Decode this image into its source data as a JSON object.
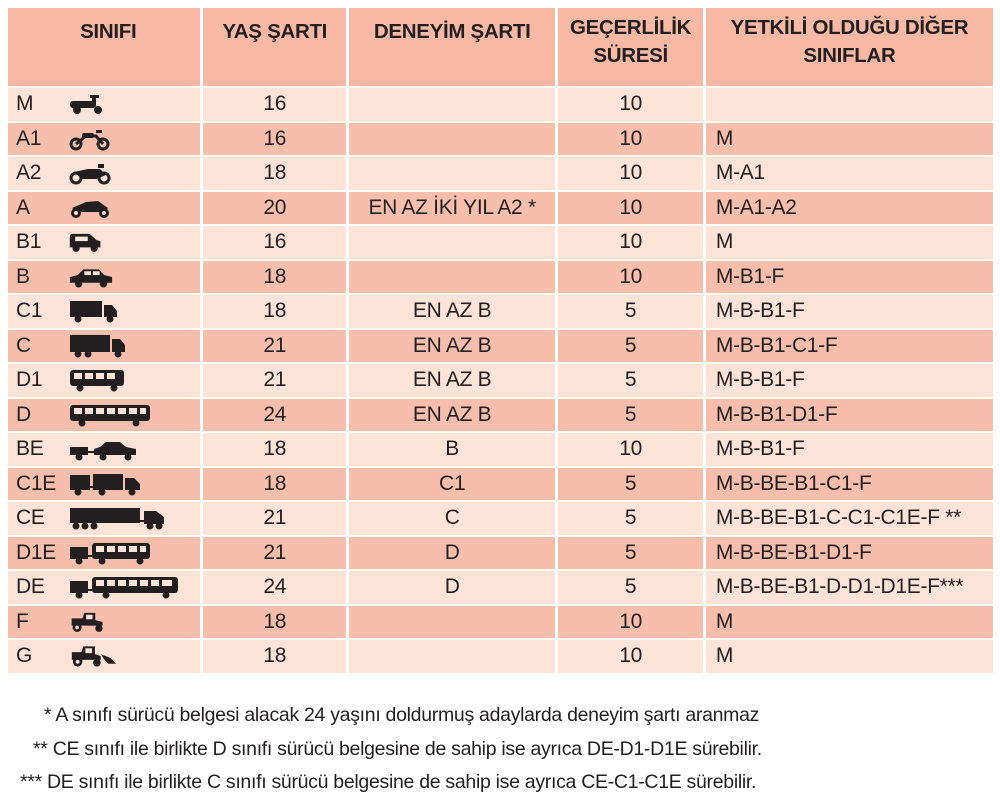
{
  "header": {
    "sinifi": "SINIFI",
    "yas": "YAŞ ŞARTI",
    "deneyim": "DENEYİM ŞARTI",
    "gecerlilik_1": "GEÇERLİLİK",
    "gecerlilik_2": "SÜRESİ",
    "yetkili_1": "YETKİLİ OLDUĞU DİĞER",
    "yetkili_2": "SINIFLAR"
  },
  "rows": [
    {
      "class": "M",
      "icon": "moped-icon",
      "age": "16",
      "experience": "",
      "validity": "10",
      "other": ""
    },
    {
      "class": "A1",
      "icon": "scooter-icon",
      "age": "16",
      "experience": "",
      "validity": "10",
      "other": "M"
    },
    {
      "class": "A2",
      "icon": "motorcycle-icon",
      "age": "18",
      "experience": "",
      "validity": "10",
      "other": "M-A1"
    },
    {
      "class": "A",
      "icon": "sport-motorcycle-icon",
      "age": "20",
      "experience": "EN AZ İKİ YIL A2 *",
      "validity": "10",
      "other": "M-A1-A2"
    },
    {
      "class": "B1",
      "icon": "quadricycle-icon",
      "age": "16",
      "experience": "",
      "validity": "10",
      "other": "M"
    },
    {
      "class": "B",
      "icon": "car-icon",
      "age": "18",
      "experience": "",
      "validity": "10",
      "other": "M-B1-F"
    },
    {
      "class": "C1",
      "icon": "light-truck-icon",
      "age": "18",
      "experience": "EN AZ B",
      "validity": "5",
      "other": "M-B-B1-F"
    },
    {
      "class": "C",
      "icon": "truck-icon",
      "age": "21",
      "experience": "EN AZ B",
      "validity": "5",
      "other": "M-B-B1-C1-F"
    },
    {
      "class": "D1",
      "icon": "minibus-icon",
      "age": "21",
      "experience": "EN AZ B",
      "validity": "5",
      "other": "M-B-B1-F"
    },
    {
      "class": "D",
      "icon": "bus-icon",
      "age": "24",
      "experience": "EN AZ B",
      "validity": "5",
      "other": "M-B-B1-D1-F"
    },
    {
      "class": "BE",
      "icon": "car-trailer-icon",
      "age": "18",
      "experience": "B",
      "validity": "10",
      "other": "M-B-B1-F"
    },
    {
      "class": "C1E",
      "icon": "light-truck-trailer-icon",
      "age": "18",
      "experience": "C1",
      "validity": "5",
      "other": "M-B-BE-B1-C1-F"
    },
    {
      "class": "CE",
      "icon": "semi-trailer-truck-icon",
      "age": "21",
      "experience": "C",
      "validity": "5",
      "other": "M-B-BE-B1-C-C1-C1E-F **"
    },
    {
      "class": "D1E",
      "icon": "minibus-trailer-icon",
      "age": "21",
      "experience": "D",
      "validity": "5",
      "other": "M-B-BE-B1-D1-F"
    },
    {
      "class": "DE",
      "icon": "bus-trailer-icon",
      "age": "24",
      "experience": "D",
      "validity": "5",
      "other": "M-B-BE-B1-D-D1-D1E-F***"
    },
    {
      "class": "F",
      "icon": "tractor-icon",
      "age": "18",
      "experience": "",
      "validity": "10",
      "other": "M"
    },
    {
      "class": "G",
      "icon": "construction-machine-icon",
      "age": "18",
      "experience": "",
      "validity": "10",
      "other": "M"
    }
  ],
  "notes": [
    "*   A sınıfı sürücü belgesi alacak 24 yaşını doldurmuş adaylarda deneyim şartı aranmaz",
    "** CE sınıfı ile birlikte D sınıfı sürücü belgesine de sahip ise ayrıca DE-D1-D1E sürebilir.",
    "*** DE sınıfı ile birlikte C sınıfı sürücü belgesine de sahip ise ayrıca CE-C1-C1E sürebilir."
  ],
  "colors": {
    "header_bg": "#f7b9a4",
    "row_dark": "#f7bfab",
    "row_light": "#fde3d8",
    "text": "#231f20"
  }
}
